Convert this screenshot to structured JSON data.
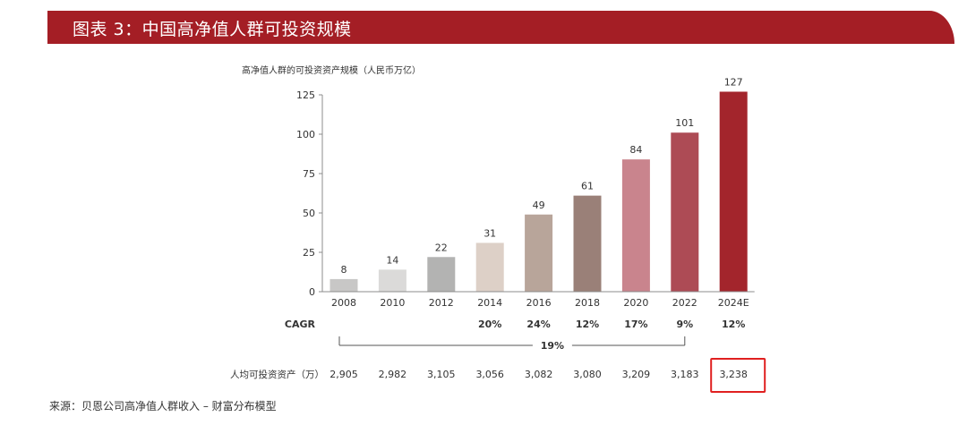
{
  "header": {
    "title": "图表 3：中国高净值人群可投资规模"
  },
  "chart_data": {
    "type": "bar",
    "title": "高净值人群的可投资资产规模（人民币万亿）",
    "categories": [
      "2008",
      "2010",
      "2012",
      "2014",
      "2016",
      "2018",
      "2020",
      "2022",
      "2024E"
    ],
    "values": [
      8,
      14,
      22,
      31,
      49,
      61,
      84,
      101,
      127
    ],
    "data_labels": [
      "8",
      "14",
      "22",
      "31",
      "49",
      "61",
      "84",
      "101",
      "127"
    ],
    "ylim": [
      0,
      125
    ],
    "yticks": [
      "0",
      "25",
      "50",
      "75",
      "100",
      "125"
    ],
    "ytick_values": [
      0,
      25,
      50,
      75,
      100,
      125
    ],
    "grid": false,
    "bar_colors": [
      "#c8c7c6",
      "#dbdad9",
      "#b3b3b2",
      "#ddd0c7",
      "#b8a59a",
      "#9a8078",
      "#c9848d",
      "#ad4b55",
      "#a3252c"
    ],
    "cagr": {
      "label": "CAGR",
      "values": [
        "",
        "",
        "",
        "20%",
        "24%",
        "12%",
        "17%",
        "9%",
        "12%"
      ],
      "overall": "19%"
    },
    "per_capita": {
      "label": "人均可投资资产（万）",
      "values": [
        "2,905",
        "2,982",
        "3,105",
        "3,056",
        "3,082",
        "3,080",
        "3,209",
        "3,183",
        "3,238"
      ],
      "highlight_color": "#e02020"
    }
  },
  "footer": {
    "source": "来源：贝恩公司高净值人群收入 – 财富分布模型"
  }
}
